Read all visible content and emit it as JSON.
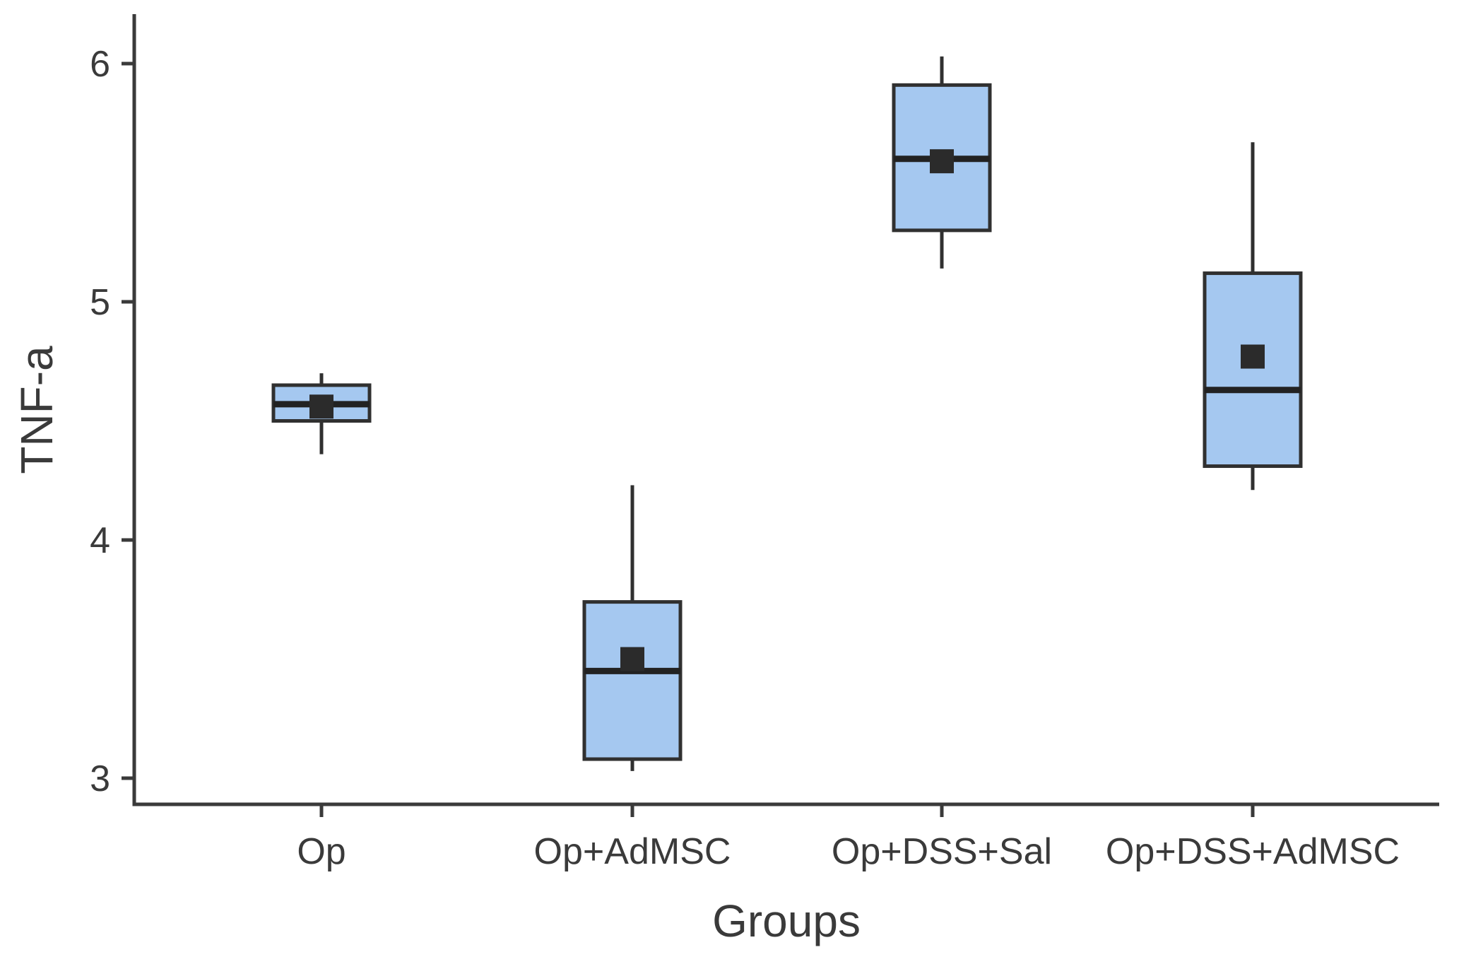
{
  "figure": {
    "background": "#ffffff"
  },
  "chart_data": {
    "type": "boxplot",
    "title": "",
    "xlabel": "Groups",
    "ylabel": "TNF-a",
    "categories": [
      "Op",
      "Op+AdMSC",
      "Op+DSS+Sal",
      "Op+DSS+AdMSC"
    ],
    "y_ticks": [
      3,
      4,
      5,
      6
    ],
    "ylim": [
      2.89,
      6.22
    ],
    "grid": false,
    "legend": "none",
    "boxes": [
      {
        "group": "Op",
        "whisker_low": 4.36,
        "q1": 4.5,
        "median": 4.57,
        "q3": 4.65,
        "whisker_high": 4.7,
        "mean": 4.56
      },
      {
        "group": "Op+AdMSC",
        "whisker_low": 3.03,
        "q1": 3.08,
        "median": 3.45,
        "q3": 3.74,
        "whisker_high": 4.23,
        "mean": 3.5
      },
      {
        "group": "Op+DSS+Sal",
        "whisker_low": 5.14,
        "q1": 5.3,
        "median": 5.6,
        "q3": 5.91,
        "whisker_high": 6.03,
        "mean": 5.59
      },
      {
        "group": "Op+DSS+AdMSC",
        "whisker_low": 4.21,
        "q1": 4.31,
        "median": 4.63,
        "q3": 5.12,
        "whisker_high": 5.67,
        "mean": 4.77
      }
    ],
    "style": {
      "box_fill": "#A5C8F0",
      "box_border": "#303030",
      "median_color": "#222222",
      "mean_marker": "filled-square",
      "mean_color": "#2B2B2B",
      "axis_color": "#3A3A3A",
      "text_color": "#3A3A3A"
    }
  }
}
